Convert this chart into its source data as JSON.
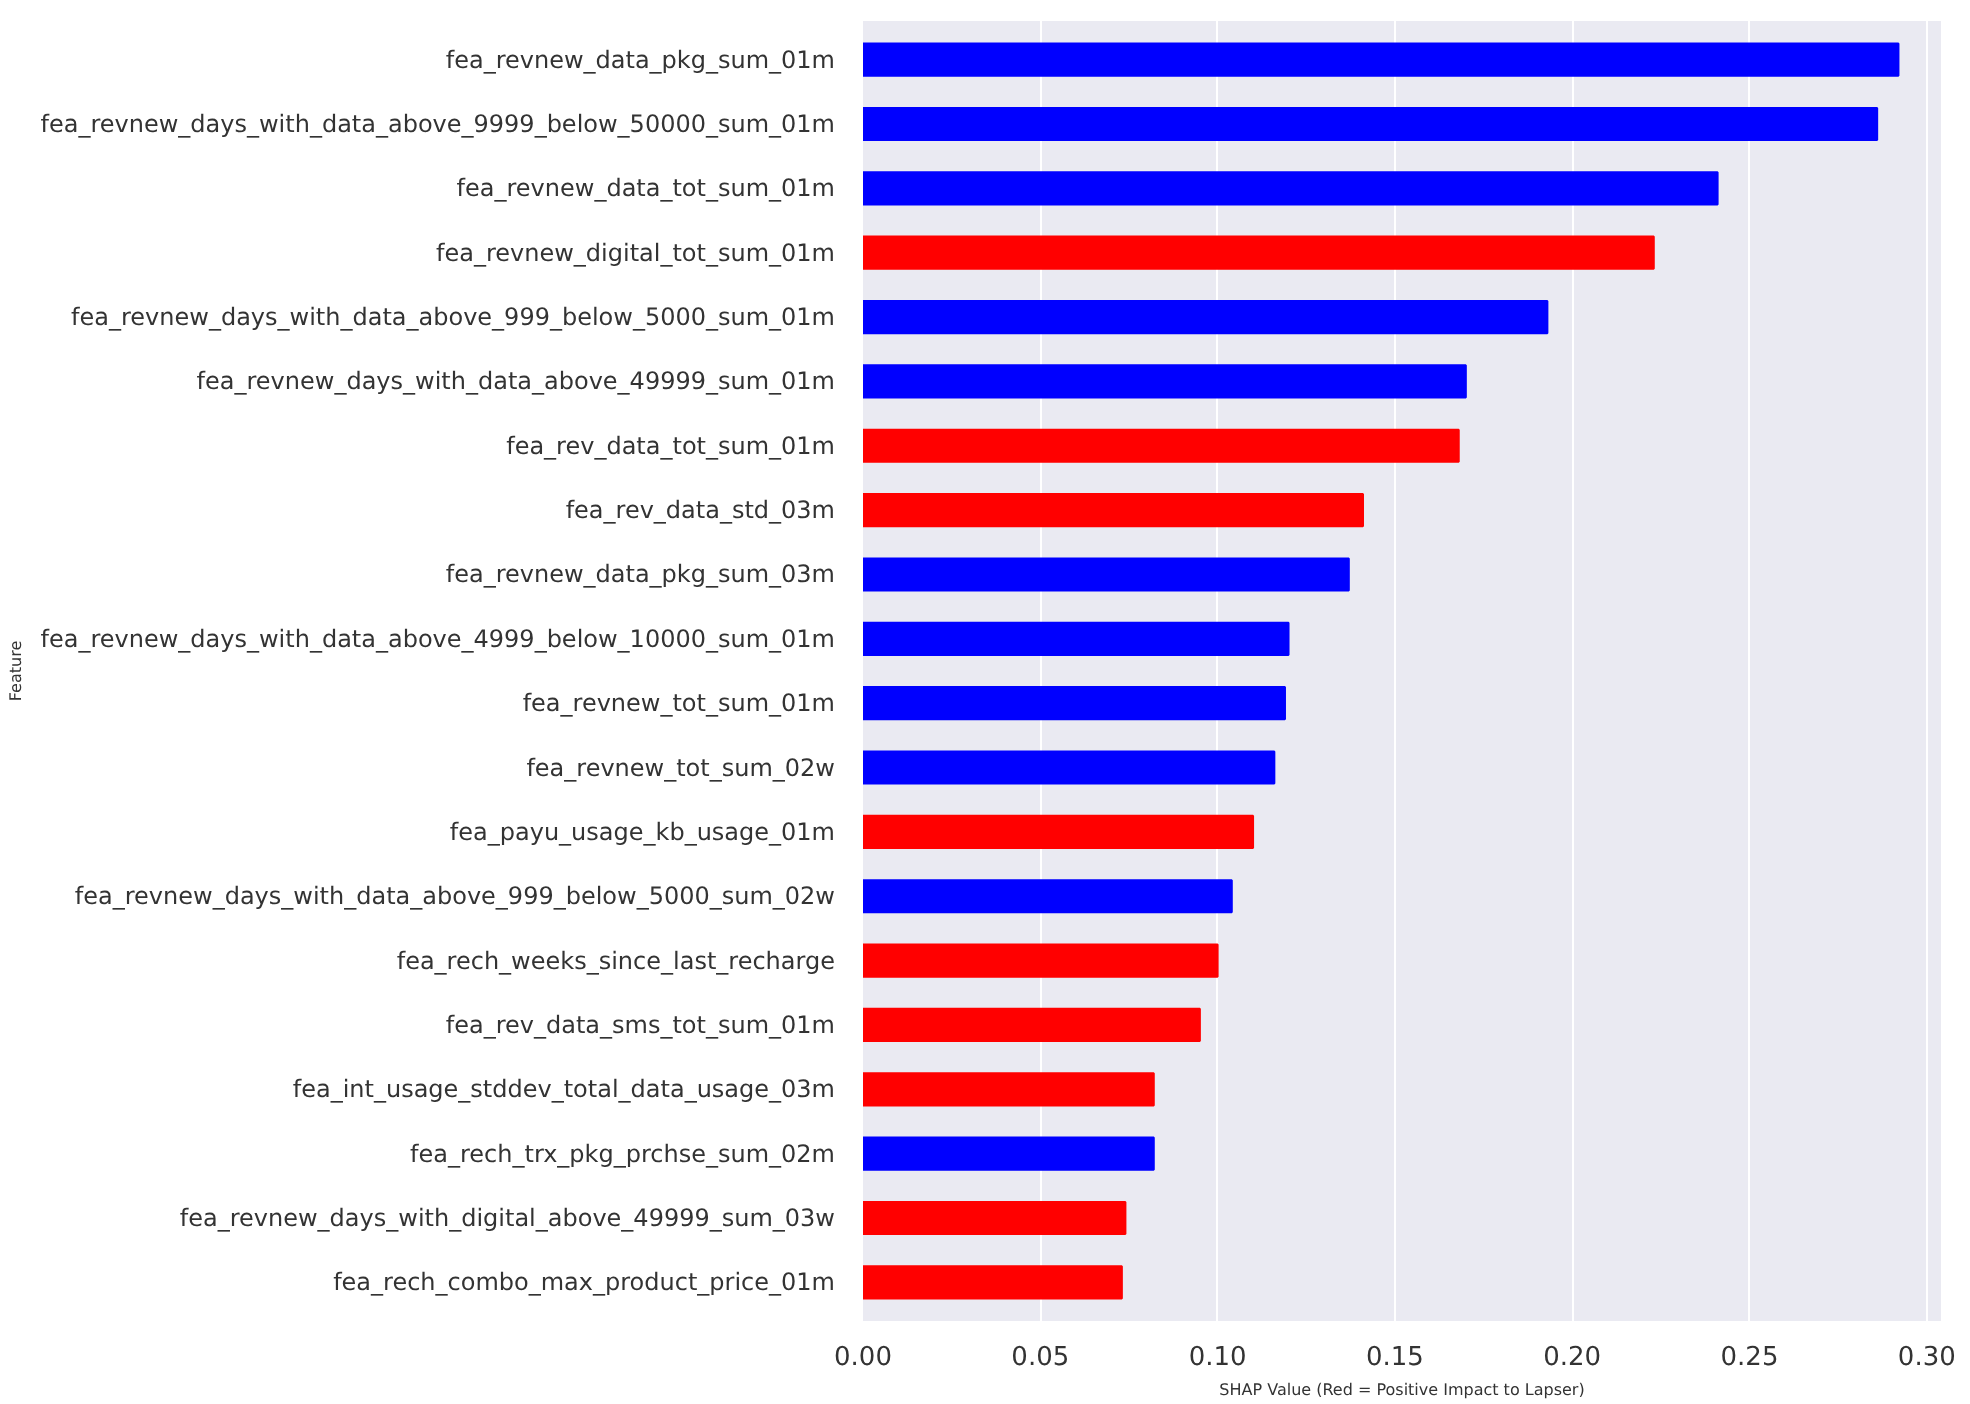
{
  "chart_data": {
    "type": "bar",
    "orientation": "horizontal",
    "xlabel": "SHAP Value (Red = Positive Impact to Lapser)",
    "ylabel": "Feature",
    "categories": [
      "fea_revnew_data_pkg_sum_01m",
      "fea_revnew_days_with_data_above_9999_below_50000_sum_01m",
      "fea_revnew_data_tot_sum_01m",
      "fea_revnew_digital_tot_sum_01m",
      "fea_revnew_days_with_data_above_999_below_5000_sum_01m",
      "fea_revnew_days_with_data_above_49999_sum_01m",
      "fea_rev_data_tot_sum_01m",
      "fea_rev_data_std_03m",
      "fea_revnew_data_pkg_sum_03m",
      "fea_revnew_days_with_data_above_4999_below_10000_sum_01m",
      "fea_revnew_tot_sum_01m",
      "fea_revnew_tot_sum_02w",
      "fea_payu_usage_kb_usage_01m",
      "fea_revnew_days_with_data_above_999_below_5000_sum_02w",
      "fea_rech_weeks_since_last_recharge",
      "fea_rev_data_sms_tot_sum_01m",
      "fea_int_usage_stddev_total_data_usage_03m",
      "fea_rech_trx_pkg_prchse_sum_02m",
      "fea_revnew_days_with_digital_above_49999_sum_03w",
      "fea_rech_combo_max_product_price_01m"
    ],
    "values": [
      0.292,
      0.286,
      0.241,
      0.223,
      0.193,
      0.17,
      0.168,
      0.141,
      0.137,
      0.12,
      0.119,
      0.116,
      0.11,
      0.104,
      0.1,
      0.095,
      0.082,
      0.082,
      0.074,
      0.073
    ],
    "colors": [
      "#0000ff",
      "#0000ff",
      "#0000ff",
      "#ff0000",
      "#0000ff",
      "#0000ff",
      "#ff0000",
      "#ff0000",
      "#0000ff",
      "#0000ff",
      "#0000ff",
      "#0000ff",
      "#ff0000",
      "#0000ff",
      "#ff0000",
      "#ff0000",
      "#ff0000",
      "#0000ff",
      "#ff0000",
      "#ff0000"
    ],
    "xlim": [
      0,
      0.304
    ],
    "xticks": [
      {
        "value": 0,
        "label": "0.00"
      },
      {
        "value": 0.05,
        "label": "0.05"
      },
      {
        "value": 0.1,
        "label": "0.10"
      },
      {
        "value": 0.15,
        "label": "0.15"
      },
      {
        "value": 0.2,
        "label": "0.20"
      },
      {
        "value": 0.25,
        "label": "0.25"
      },
      {
        "value": 0.3,
        "label": "0.30"
      }
    ],
    "grid": "x"
  }
}
